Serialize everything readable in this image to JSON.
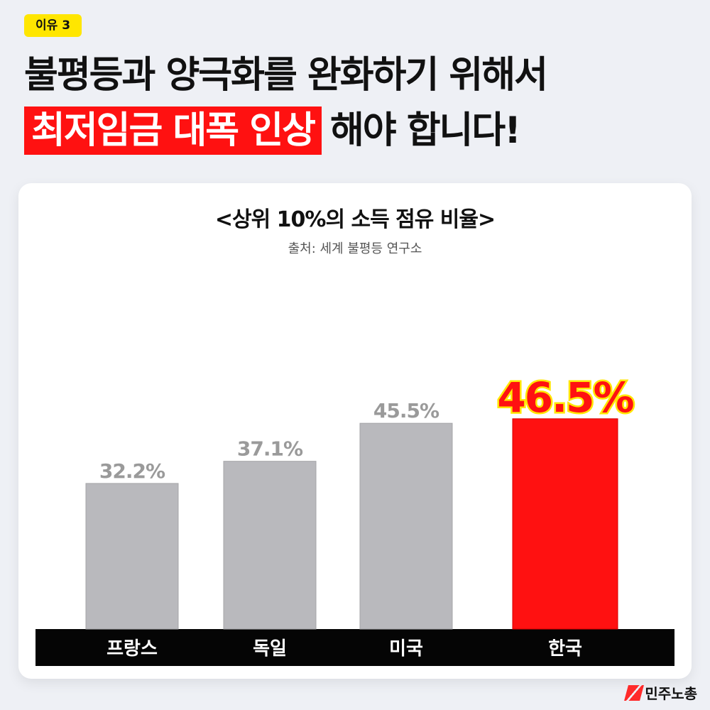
{
  "badge": "이유 3",
  "headline": {
    "line1": "불평등과 양극화를 완화하기 위해서",
    "highlight": "최저임금 대폭 인상",
    "line2_rest": "해야 합니다!"
  },
  "colors": {
    "accent": "#ff1111",
    "badge": "#ffe600",
    "bar_default": "#b9b9bd",
    "label_default": "#9a9a9a",
    "axis_band": "#050505"
  },
  "chart_data": {
    "type": "bar",
    "title": "<상위 10%의 소득 점유 비율>",
    "subtitle": "출처: 세계 불평등 연구소",
    "categories": [
      "프랑스",
      "독일",
      "미국",
      "한국"
    ],
    "values": [
      32.2,
      37.1,
      45.5,
      46.5
    ],
    "value_labels": [
      "32.2%",
      "37.1%",
      "45.5%",
      "46.5%"
    ],
    "highlight_index": 3,
    "ylabel": "",
    "xlabel": "",
    "grid": false
  },
  "logo": {
    "text": "민주노총",
    "icon": "kctu-logo-icon"
  }
}
